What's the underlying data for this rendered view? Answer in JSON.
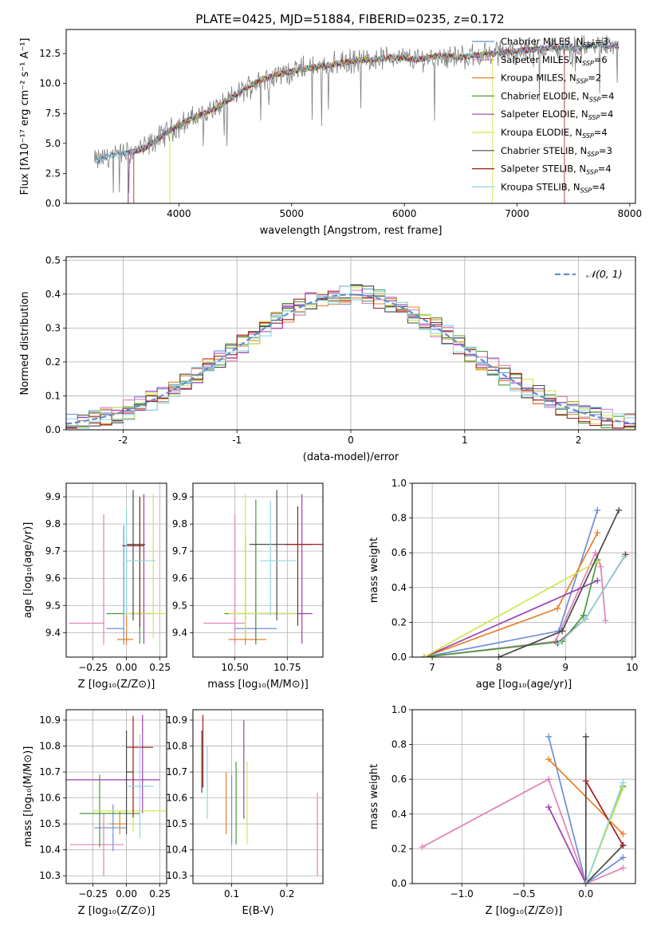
{
  "figure": {
    "title": "PLATE=0425, MJD=51884, FIBERID=0235, z=0.172"
  },
  "models": [
    {
      "name": "Chabrier MILES",
      "nssp": "3",
      "color": "#6a8fd8"
    },
    {
      "name": "Salpeter MILES",
      "nssp": "6",
      "color": "#e27fb8"
    },
    {
      "name": "Kroupa MILES",
      "nssp": "2",
      "color": "#e8802a"
    },
    {
      "name": "Chabrier ELODIE",
      "nssp": "4",
      "color": "#4a9a3a"
    },
    {
      "name": "Salpeter ELODIE",
      "nssp": "4",
      "color": "#9b3fb0"
    },
    {
      "name": "Kroupa ELODIE",
      "nssp": "4",
      "color": "#d2e64e"
    },
    {
      "name": "Chabrier STELIB",
      "nssp": "3",
      "color": "#4a4a4a"
    },
    {
      "name": "Salpeter STELIB",
      "nssp": "4",
      "color": "#a01c1c"
    },
    {
      "name": "Kroupa STELIB",
      "nssp": "4",
      "color": "#8ed8e0"
    }
  ],
  "legend_prefix": "N",
  "legend_sub": "SSP",
  "chart_data": [
    {
      "id": "spectrum",
      "type": "line",
      "xlabel": "wavelength [Angstrom, rest frame]",
      "ylabel": "Flux [fλ10⁻¹⁷ erg cm⁻² s⁻¹ A⁻¹]",
      "xlim": [
        3000,
        8050
      ],
      "ylim": [
        0,
        14.5
      ],
      "xticks": [
        4000,
        5000,
        6000,
        7000,
        8000
      ],
      "yticks": [
        0.0,
        2.5,
        5.0,
        7.5,
        10.0,
        12.5
      ],
      "grid": false,
      "legend_placement": "right",
      "data_color": "#7f7f7f",
      "data_x": [
        3250,
        3400,
        3550,
        3700,
        3900,
        4100,
        4300,
        4500,
        4700,
        4900,
        5100,
        5300,
        5500,
        5700,
        5900,
        6100,
        6300,
        6500,
        6700,
        6900,
        7100,
        7300,
        7500,
        7700,
        7900
      ],
      "data_y": [
        3.5,
        4.0,
        4.2,
        4.6,
        6.0,
        7.0,
        7.8,
        9.0,
        10.2,
        10.8,
        11.2,
        11.5,
        11.8,
        12.0,
        12.2,
        12.0,
        12.3,
        12.2,
        12.4,
        12.6,
        12.8,
        13.0,
        12.9,
        13.2,
        13.1
      ],
      "model_starts": [
        3250,
        3550,
        3550,
        3550,
        3550,
        3920,
        3250,
        3600,
        3250
      ],
      "model_ends": [
        7900,
        7900,
        7900,
        7900,
        7900,
        6780,
        7900,
        7420,
        7900
      ]
    },
    {
      "id": "residuals",
      "type": "histogram",
      "xlabel": "(data-model)/error",
      "ylabel": "Normed distribution",
      "xlim": [
        -2.5,
        2.5
      ],
      "ylim": [
        0,
        0.51
      ],
      "xticks": [
        -2,
        -1,
        0,
        1,
        2
      ],
      "yticks": [
        0.0,
        0.1,
        0.2,
        0.3,
        0.4,
        0.5
      ],
      "grid": true,
      "bin_width": 0.1,
      "normal_label": "𝒩(0, 1)",
      "normal_color": "#5f8dd3",
      "legend_placement": "top-right"
    },
    {
      "id": "age_vs_Z",
      "type": "errorbar",
      "xlabel": "Z [log₁₀(Z/Z⊙)]",
      "ylabel": "age  [log₁₀(age/yr)]",
      "xlim": [
        -0.45,
        0.3
      ],
      "ylim": [
        9.31,
        9.95
      ],
      "xticks": [
        -0.25,
        0.0,
        0.25
      ],
      "xticklabels": [
        "−0.25",
        "0.00",
        "0.25"
      ],
      "yticks": [
        9.4,
        9.5,
        9.6,
        9.7,
        9.8,
        9.9
      ],
      "grid": true,
      "points": [
        {
          "x": -0.02,
          "y": 9.415,
          "xerr": [
            0.13,
            0.0
          ],
          "yerr": [
            0.06,
            0.38
          ]
        },
        {
          "x": -0.17,
          "y": 9.435,
          "xerr": [
            0.26,
            0.0
          ],
          "yerr": [
            0.08,
            0.4
          ]
        },
        {
          "x": 0.0,
          "y": 9.375,
          "xerr": [
            0.07,
            0.05
          ],
          "yerr": [
            0.02,
            0.38
          ]
        },
        {
          "x": 0.1,
          "y": 9.47,
          "xerr": [
            0.25,
            0.1
          ],
          "yerr": [
            0.11,
            0.42
          ]
        },
        {
          "x": 0.13,
          "y": 9.47,
          "xerr": [
            0.1,
            0.0
          ],
          "yerr": [
            0.11,
            0.44
          ]
        },
        {
          "x": 0.2,
          "y": 9.47,
          "xerr": [
            0.22,
            0.09
          ],
          "yerr": [
            0.09,
            0.44
          ]
        },
        {
          "x": 0.05,
          "y": 9.725,
          "xerr": [
            0.05,
            0.09
          ],
          "yerr": [
            0.28,
            0.2
          ]
        },
        {
          "x": 0.1,
          "y": 9.72,
          "xerr": [
            0.13,
            0.03
          ],
          "yerr": [
            0.3,
            0.18
          ]
        },
        {
          "x": 0.0,
          "y": 9.665,
          "xerr": [
            0.0,
            0.22
          ],
          "yerr": [
            0.2,
            0.19
          ]
        }
      ]
    },
    {
      "id": "age_vs_mass",
      "type": "errorbar",
      "xlabel": "mass [log₁₀(M/M⊙)]",
      "ylabel": "",
      "xlim": [
        10.3,
        10.92
      ],
      "ylim": [
        9.31,
        9.95
      ],
      "xticks": [
        10.5,
        10.75
      ],
      "xticklabels": [
        "10.50",
        "10.75"
      ],
      "yticks": [
        9.4,
        9.5,
        9.6,
        9.7,
        9.8,
        9.9
      ],
      "grid": true,
      "points": [
        {
          "x": 10.6,
          "y": 9.415,
          "xerr": [
            0.1,
            0.1
          ],
          "yerr": [
            0.06,
            0.38
          ]
        },
        {
          "x": 10.5,
          "y": 9.435,
          "xerr": [
            0.15,
            0.05
          ],
          "yerr": [
            0.08,
            0.4
          ]
        },
        {
          "x": 10.55,
          "y": 9.375,
          "xerr": [
            0.08,
            0.1
          ],
          "yerr": [
            0.02,
            0.38
          ]
        },
        {
          "x": 10.6,
          "y": 9.47,
          "xerr": [
            0.15,
            0.1
          ],
          "yerr": [
            0.11,
            0.42
          ]
        },
        {
          "x": 10.82,
          "y": 9.47,
          "xerr": [
            0.2,
            0.05
          ],
          "yerr": [
            0.11,
            0.44
          ]
        },
        {
          "x": 10.55,
          "y": 9.47,
          "xerr": [
            0.08,
            0.25
          ],
          "yerr": [
            0.09,
            0.44
          ]
        },
        {
          "x": 10.7,
          "y": 9.725,
          "xerr": [
            0.13,
            0.17
          ],
          "yerr": [
            0.28,
            0.2
          ]
        },
        {
          "x": 10.8,
          "y": 9.725,
          "xerr": [
            0.06,
            0.16
          ],
          "yerr": [
            0.3,
            0.14
          ]
        },
        {
          "x": 10.67,
          "y": 9.665,
          "xerr": [
            0.05,
            0.12
          ],
          "yerr": [
            0.2,
            0.22
          ]
        }
      ]
    },
    {
      "id": "mass_weight_vs_age",
      "type": "line",
      "xlabel": "age  [log₁₀(age/yr)]",
      "ylabel": "mass weight",
      "xlim": [
        6.7,
        10.05
      ],
      "ylim": [
        0,
        1.0
      ],
      "xticks": [
        7,
        8,
        9,
        10
      ],
      "yticks": [
        0.0,
        0.2,
        0.4,
        0.6,
        0.8,
        1.0
      ],
      "grid": true,
      "series": [
        {
          "x": [
            6.88,
            8.9,
            9.48
          ],
          "y": [
            0.0,
            0.15,
            0.845
          ]
        },
        {
          "x": [
            6.88,
            8.85,
            9.45,
            9.53,
            9.6
          ],
          "y": [
            0.0,
            0.09,
            0.6,
            0.52,
            0.21
          ]
        },
        {
          "x": [
            6.88,
            8.88,
            9.48
          ],
          "y": [
            0.0,
            0.28,
            0.715
          ]
        },
        {
          "x": [
            6.88,
            8.95,
            9.27,
            9.48
          ],
          "y": [
            0.0,
            0.09,
            0.24,
            0.56
          ]
        },
        {
          "x": [
            6.88,
            9.48
          ],
          "y": [
            0.0,
            0.44
          ]
        },
        {
          "x": [
            6.88,
            9.48
          ],
          "y": [
            0.0,
            0.55
          ]
        },
        {
          "x": [
            8.0,
            8.95,
            9.8
          ],
          "y": [
            0.0,
            0.15,
            0.845
          ]
        },
        {
          "x": [
            8.88,
            9.3,
            9.9
          ],
          "y": [
            0.08,
            0.22,
            0.59
          ]
        },
        {
          "x": [
            8.9,
            9.3,
            9.88
          ],
          "y": [
            0.08,
            0.22,
            0.58
          ]
        }
      ]
    },
    {
      "id": "mass_vs_Z",
      "type": "errorbar",
      "xlabel": "Z [log₁₀(Z/Z⊙)]",
      "ylabel": "mass [log₁₀(M/M⊙)]",
      "xlim": [
        -0.45,
        0.3
      ],
      "ylim": [
        10.27,
        10.94
      ],
      "xticks": [
        -0.25,
        0.0,
        0.25
      ],
      "xticklabels": [
        "−0.25",
        "0.00",
        "0.25"
      ],
      "yticks": [
        10.3,
        10.4,
        10.5,
        10.6,
        10.7,
        10.8,
        10.9
      ],
      "grid": true,
      "points": [
        {
          "x": -0.1,
          "y": 10.485,
          "xerr": [
            0.14,
            0.1
          ],
          "yerr": [
            0.09,
            0.09
          ]
        },
        {
          "x": -0.17,
          "y": 10.42,
          "xerr": [
            0.25,
            0.15
          ],
          "yerr": [
            0.12,
            0.12
          ]
        },
        {
          "x": -0.05,
          "y": 10.5,
          "xerr": [
            0.08,
            0.05
          ],
          "yerr": [
            0.04,
            0.05
          ]
        },
        {
          "x": -0.2,
          "y": 10.54,
          "xerr": [
            0.15,
            0.3
          ],
          "yerr": [
            0.13,
            0.15
          ]
        },
        {
          "x": 0.12,
          "y": 10.67,
          "xerr": [
            0.6,
            0.13
          ],
          "yerr": [
            0.13,
            0.25
          ]
        },
        {
          "x": 0.05,
          "y": 10.55,
          "xerr": [
            0.3,
            0.25
          ],
          "yerr": [
            0.08,
            0.26
          ]
        },
        {
          "x": 0.0,
          "y": 10.7,
          "xerr": [
            0.0,
            0.05
          ],
          "yerr": [
            0.24,
            0.16
          ]
        },
        {
          "x": 0.05,
          "y": 10.795,
          "xerr": [
            0.05,
            0.15
          ],
          "yerr": [
            0.27,
            0.12
          ]
        },
        {
          "x": 0.1,
          "y": 10.645,
          "xerr": [
            0.1,
            0.1
          ],
          "yerr": [
            0.2,
            0.2
          ]
        }
      ]
    },
    {
      "id": "mass_vs_ebv",
      "type": "errorbar",
      "xlabel": "E(B-V)",
      "ylabel": "",
      "xlim": [
        0.03,
        0.265
      ],
      "ylim": [
        10.27,
        10.94
      ],
      "xticks": [
        0.1,
        0.2
      ],
      "xticklabels": [
        "0.1",
        "0.2"
      ],
      "yticks": [
        10.3,
        10.4,
        10.5,
        10.6,
        10.7,
        10.8,
        10.9
      ],
      "grid": true,
      "points": [
        {
          "x": 0.1,
          "y": 10.58,
          "xerr": [
            0,
            0
          ],
          "yerr": [
            0.16,
            0.11
          ]
        },
        {
          "x": 0.255,
          "y": 10.46,
          "xerr": [
            0,
            0
          ],
          "yerr": [
            0.16,
            0.16
          ]
        },
        {
          "x": 0.09,
          "y": 10.58,
          "xerr": [
            0,
            0
          ],
          "yerr": [
            0.12,
            0.12
          ]
        },
        {
          "x": 0.108,
          "y": 10.58,
          "xerr": [
            0,
            0
          ],
          "yerr": [
            0.16,
            0.16
          ]
        },
        {
          "x": 0.122,
          "y": 10.72,
          "xerr": [
            0,
            0
          ],
          "yerr": [
            0.2,
            0.18
          ]
        },
        {
          "x": 0.128,
          "y": 10.58,
          "xerr": [
            0,
            0
          ],
          "yerr": [
            0.16,
            0.16
          ]
        },
        {
          "x": 0.046,
          "y": 10.74,
          "xerr": [
            0,
            0
          ],
          "yerr": [
            0.12,
            0.12
          ]
        },
        {
          "x": 0.048,
          "y": 10.78,
          "xerr": [
            0,
            0
          ],
          "yerr": [
            0.14,
            0.14
          ]
        },
        {
          "x": 0.056,
          "y": 10.66,
          "xerr": [
            0,
            0
          ],
          "yerr": [
            0.14,
            0.14
          ]
        }
      ]
    },
    {
      "id": "mass_weight_vs_Z",
      "type": "line",
      "xlabel": "Z [log₁₀(Z/Z⊙)]",
      "ylabel": "mass weight",
      "xlim": [
        -1.4,
        0.4
      ],
      "ylim": [
        0,
        1.0
      ],
      "xticks": [
        -1.0,
        -0.5,
        0.0
      ],
      "xticklabels": [
        "−1.0",
        "−0.5",
        "0.0"
      ],
      "yticks": [
        0.0,
        0.2,
        0.4,
        0.6,
        0.8,
        1.0
      ],
      "grid": true,
      "series": [
        {
          "x": [
            -0.3,
            0.0,
            0.3
          ],
          "y": [
            0.845,
            0.0,
            0.15
          ]
        },
        {
          "x": [
            -1.32,
            -0.3,
            0.0,
            0.3
          ],
          "y": [
            0.21,
            0.6,
            0.0,
            0.09
          ]
        },
        {
          "x": [
            -0.3,
            0.3
          ],
          "y": [
            0.715,
            0.285
          ]
        },
        {
          "x": [
            0.0,
            0.3
          ],
          "y": [
            0.0,
            0.56
          ]
        },
        {
          "x": [
            -0.3,
            0.0
          ],
          "y": [
            0.44,
            0.0
          ]
        },
        {
          "x": [
            0.0,
            0.3
          ],
          "y": [
            0.0,
            0.55
          ]
        },
        {
          "x": [
            0.0,
            0.0,
            0.3
          ],
          "y": [
            0.845,
            0.0,
            0.22
          ]
        },
        {
          "x": [
            0.0,
            0.3
          ],
          "y": [
            0.59,
            0.22
          ]
        },
        {
          "x": [
            0.0,
            0.3
          ],
          "y": [
            0.0,
            0.58
          ]
        }
      ]
    }
  ]
}
